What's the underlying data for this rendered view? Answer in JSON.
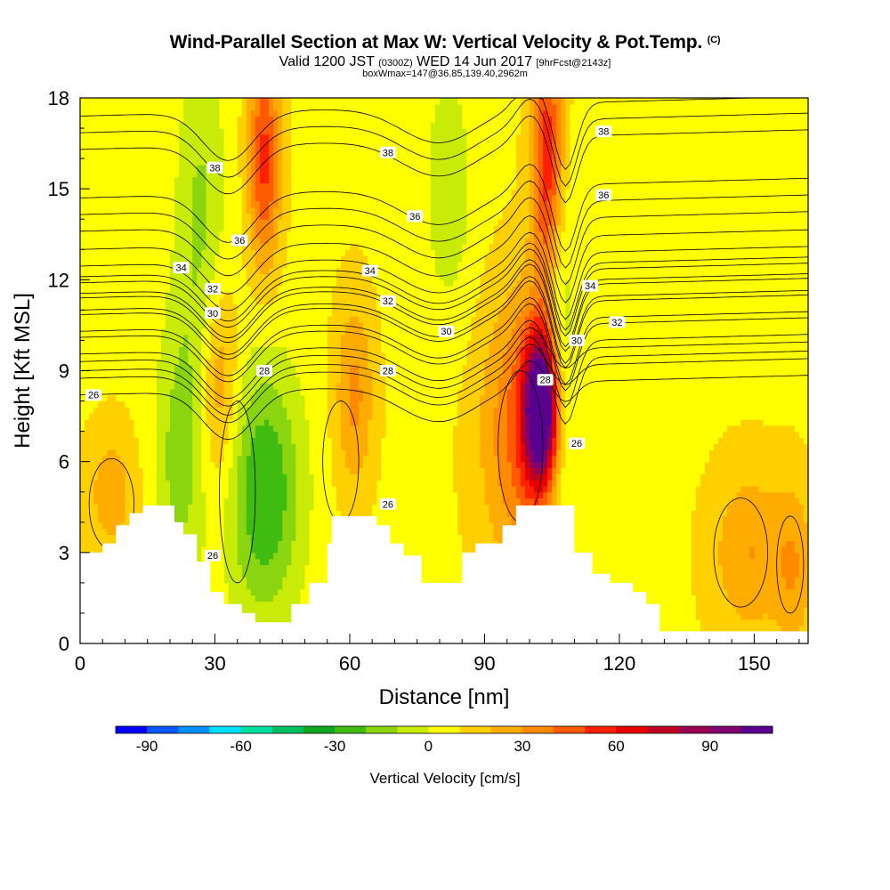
{
  "title": {
    "main": "Wind-Parallel Section at Max W: Vertical Velocity & Pot.Temp.",
    "mark": "(C)",
    "line2_a": "Valid 1200 JST",
    "line2_b": "(0300Z)",
    "line2_c": "WED 14 Jun 2017",
    "line2_d": "[9hrFcst@2143z]",
    "line3": "boxWmax=147@36.85,139.40,2962m"
  },
  "chart_data": {
    "type": "heatmap",
    "xlabel": "Distance [nm]",
    "ylabel": "Height [Kft MSL]",
    "xlim": [
      0,
      162
    ],
    "ylim": [
      0,
      18
    ],
    "x_ticks": [
      0,
      30,
      60,
      90,
      120,
      150
    ],
    "y_ticks": [
      0,
      3,
      6,
      9,
      12,
      15,
      18
    ],
    "colorbar": {
      "label": "Vertical Velocity [cm/s]",
      "range": [
        -100,
        110
      ],
      "step": 10,
      "tick_values": [
        -90,
        -60,
        -30,
        0,
        30,
        60,
        90
      ],
      "tick_labels": [
        "-90",
        "-60",
        "-30",
        "0",
        "30",
        "60",
        "90"
      ],
      "colors": [
        "#0000ff",
        "#0a55ff",
        "#0090ff",
        "#00e0ff",
        "#00e0a0",
        "#00c060",
        "#10a820",
        "#40bc10",
        "#8ad410",
        "#c8ec08",
        "#ffff00",
        "#ffd000",
        "#ffac00",
        "#ff8a00",
        "#ff5a00",
        "#ff2000",
        "#e80000",
        "#c00020",
        "#9a0050",
        "#800070",
        "#5a0090"
      ]
    },
    "terrain_kft": [
      [
        0,
        3.0
      ],
      [
        5,
        3.3
      ],
      [
        8,
        3.9
      ],
      [
        11,
        4.3
      ],
      [
        14,
        4.55
      ],
      [
        19,
        4.55
      ],
      [
        21,
        4.0
      ],
      [
        23,
        3.6
      ],
      [
        26,
        2.7
      ],
      [
        29,
        1.7
      ],
      [
        32,
        1.3
      ],
      [
        36,
        1.0
      ],
      [
        39,
        0.7
      ],
      [
        44,
        0.7
      ],
      [
        47,
        1.3
      ],
      [
        51,
        2.0
      ],
      [
        55,
        3.3
      ],
      [
        56,
        4.2
      ],
      [
        64,
        4.2
      ],
      [
        66,
        3.9
      ],
      [
        69,
        3.3
      ],
      [
        72,
        2.9
      ],
      [
        76,
        2.0
      ],
      [
        81,
        2.0
      ],
      [
        85,
        3.0
      ],
      [
        88,
        3.3
      ],
      [
        94,
        3.9
      ],
      [
        97,
        4.55
      ],
      [
        107,
        4.55
      ],
      [
        110,
        3.0
      ],
      [
        114,
        2.3
      ],
      [
        118,
        2.0
      ],
      [
        123,
        1.7
      ],
      [
        126,
        1.3
      ],
      [
        129,
        0.4
      ],
      [
        162,
        0.4
      ]
    ],
    "w_features": [
      {
        "x": 102.5,
        "z": 7.8,
        "amp": 110,
        "sx": 2.5,
        "sz": 1.6
      },
      {
        "x": 100,
        "z": 7.0,
        "amp": 40,
        "sx": 7,
        "sz": 3.2
      },
      {
        "x": 104,
        "z": 16.0,
        "amp": 50,
        "sx": 2.5,
        "sz": 3.0
      },
      {
        "x": 41,
        "z": 16.0,
        "amp": 45,
        "sx": 2.5,
        "sz": 2.5
      },
      {
        "x": 31,
        "z": 8.5,
        "amp": 25,
        "sx": 3,
        "sz": 2.5
      },
      {
        "x": 61,
        "z": 8.2,
        "amp": 25,
        "sx": 3,
        "sz": 2.2
      },
      {
        "x": 149,
        "z": 3.0,
        "amp": 22,
        "sx": 6,
        "sz": 2.0
      },
      {
        "x": 7,
        "z": 5.0,
        "amp": 18,
        "sx": 4,
        "sz": 1.5
      },
      {
        "x": 159,
        "z": 2.5,
        "amp": 18,
        "sx": 3,
        "sz": 2.0
      },
      {
        "x": 41,
        "z": 5.0,
        "amp": -38,
        "sx": 6,
        "sz": 3.0
      },
      {
        "x": 22,
        "z": 6.0,
        "amp": -22,
        "sx": 4,
        "sz": 3.5
      },
      {
        "x": 107,
        "z": 9.5,
        "amp": -25,
        "sx": 2.5,
        "sz": 4.0
      },
      {
        "x": 82,
        "z": 15.0,
        "amp": -15,
        "sx": 4,
        "sz": 3.0
      },
      {
        "x": 27,
        "z": 14.0,
        "amp": -20,
        "sx": 4,
        "sz": 4.0
      },
      {
        "x": 110,
        "z": 5.0,
        "amp": -12,
        "sx": 4,
        "sz": 3.0
      }
    ],
    "theta_levels": [
      26,
      28,
      30,
      32,
      34,
      36,
      38
    ],
    "theta_labels": [
      {
        "text": "26",
        "x": 3,
        "z": 8.2
      },
      {
        "text": "26",
        "x": 68.5,
        "z": 4.6
      },
      {
        "text": "26",
        "x": 110.5,
        "z": 6.6
      },
      {
        "text": "26",
        "x": 29.5,
        "z": 2.9
      },
      {
        "text": "28",
        "x": 41,
        "z": 9.0
      },
      {
        "text": "28",
        "x": 68.5,
        "z": 9.0
      },
      {
        "text": "28",
        "x": 103.5,
        "z": 8.7
      },
      {
        "text": "30",
        "x": 29.5,
        "z": 10.9
      },
      {
        "text": "30",
        "x": 81.5,
        "z": 10.3
      },
      {
        "text": "30",
        "x": 110.5,
        "z": 10.0
      },
      {
        "text": "32",
        "x": 29.5,
        "z": 11.7
      },
      {
        "text": "32",
        "x": 68.5,
        "z": 11.3
      },
      {
        "text": "32",
        "x": 119.5,
        "z": 10.6
      },
      {
        "text": "34",
        "x": 22.5,
        "z": 12.4
      },
      {
        "text": "34",
        "x": 64.5,
        "z": 12.3
      },
      {
        "text": "34",
        "x": 113.5,
        "z": 11.8
      },
      {
        "text": "36",
        "x": 35.5,
        "z": 13.3
      },
      {
        "text": "36",
        "x": 74.5,
        "z": 14.1
      },
      {
        "text": "36",
        "x": 116.5,
        "z": 14.8
      },
      {
        "text": "38",
        "x": 30,
        "z": 15.7
      },
      {
        "text": "38",
        "x": 68.5,
        "z": 16.2
      },
      {
        "text": "38",
        "x": 116.5,
        "z": 16.9
      }
    ]
  }
}
